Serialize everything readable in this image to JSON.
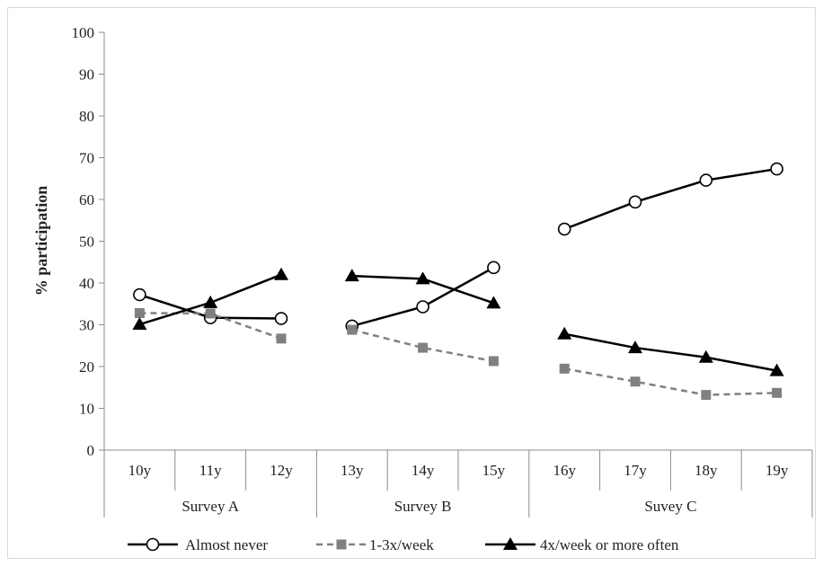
{
  "chart_data": {
    "type": "line",
    "ylabel": "% participation",
    "ylim": [
      0,
      100
    ],
    "yticks": [
      0,
      10,
      20,
      30,
      40,
      50,
      60,
      70,
      80,
      90,
      100
    ],
    "categories": [
      "10y",
      "11y",
      "12y",
      "13y",
      "14y",
      "15y",
      "16y",
      "17y",
      "18y",
      "19y"
    ],
    "groups": [
      {
        "label": "Survey A",
        "categories": [
          "10y",
          "11y",
          "12y"
        ]
      },
      {
        "label": "Survey B",
        "categories": [
          "13y",
          "14y",
          "15y"
        ]
      },
      {
        "label": "Suvey C",
        "categories": [
          "16y",
          "17y",
          "18y",
          "19y"
        ]
      }
    ],
    "series": [
      {
        "name": "Almost never",
        "color": "#000000",
        "line": "solid",
        "marker": "open-circle",
        "values": [
          37.2,
          31.7,
          31.5,
          29.7,
          34.3,
          43.7,
          52.9,
          59.4,
          64.6,
          67.3
        ]
      },
      {
        "name": "1-3x/week",
        "color": "#808080",
        "line": "dashed",
        "marker": "square",
        "values": [
          32.8,
          32.7,
          26.7,
          28.8,
          24.5,
          21.3,
          19.5,
          16.4,
          13.2,
          13.7
        ]
      },
      {
        "name": "4x/week or more often",
        "color": "#000000",
        "line": "solid",
        "marker": "triangle",
        "values": [
          30.1,
          35.3,
          42.0,
          41.7,
          41.0,
          35.2,
          27.8,
          24.5,
          22.2,
          19.0
        ]
      }
    ],
    "grid": false,
    "legend_position": "bottom"
  }
}
